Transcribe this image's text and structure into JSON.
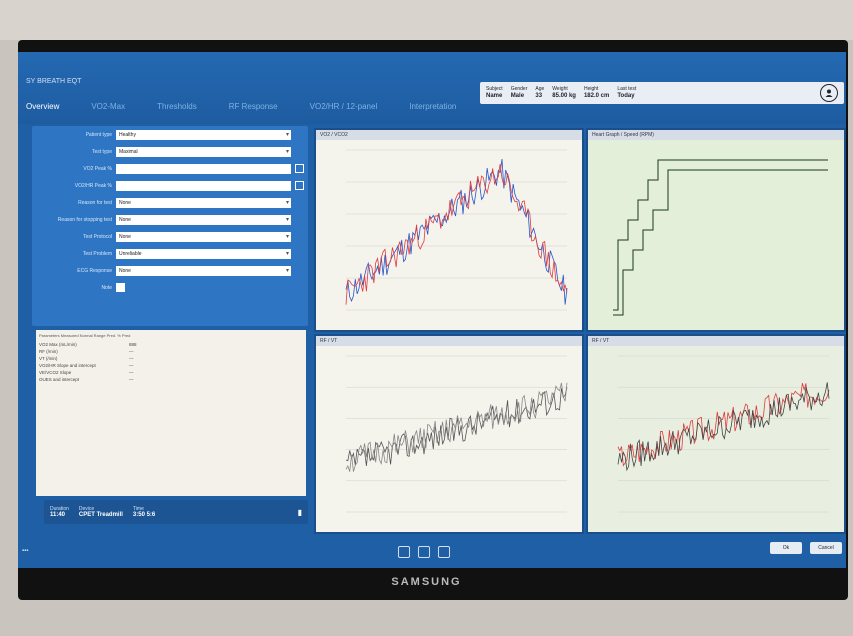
{
  "app": {
    "title": "SY BREATH EQT"
  },
  "tabs": [
    {
      "label": "Overview",
      "active": true
    },
    {
      "label": "VO2-Max",
      "active": false
    },
    {
      "label": "Thresholds",
      "active": false
    },
    {
      "label": "RF Response",
      "active": false
    },
    {
      "label": "VO2/HR / 12-panel",
      "active": false
    },
    {
      "label": "Interpretation",
      "active": false
    }
  ],
  "header": {
    "subject": {
      "label": "Subject",
      "value": "Name"
    },
    "gender": {
      "label": "Gender",
      "value": "Male"
    },
    "age": {
      "label": "Age",
      "value": "33"
    },
    "weight": {
      "label": "Weight",
      "value": "85.00 kg"
    },
    "height": {
      "label": "Height",
      "value": "182.0 cm"
    },
    "last_test": {
      "label": "Last test",
      "value": "Today"
    }
  },
  "form": {
    "rows": [
      {
        "label": "Patient type",
        "value": "Healthy",
        "type": "select"
      },
      {
        "label": "Test type",
        "value": "Maximal",
        "type": "select"
      },
      {
        "label": "VO2 Peak %",
        "value": "",
        "type": "input"
      },
      {
        "label": "VO2/HR Peak %",
        "value": "",
        "type": "input"
      },
      {
        "label": "Reason for test",
        "value": "None",
        "type": "select"
      },
      {
        "label": "Reason for stopping test",
        "value": "None",
        "type": "select"
      },
      {
        "label": "Test Protocol",
        "value": "None",
        "type": "select"
      },
      {
        "label": "Test Problem",
        "value": "Unreliable",
        "type": "select"
      },
      {
        "label": "ECG Response",
        "value": "None",
        "type": "select"
      },
      {
        "label": "Note",
        "value": "",
        "type": "checkbox"
      }
    ]
  },
  "summary": {
    "header": "Parameters   Measured  Normal Range  Pred.  % Pred",
    "rows": [
      {
        "name": "VO2 Max (mL/min)",
        "value": "888"
      },
      {
        "name": "RF (/min)",
        "value": "—"
      },
      {
        "name": "VT (/min)",
        "value": "—"
      },
      {
        "name": "VO2/HR Slope and intercept",
        "value": "—"
      },
      {
        "name": "VE/VCO2 Slope",
        "value": "—"
      },
      {
        "name": "OUES and intercept",
        "value": "—"
      }
    ]
  },
  "footer": {
    "duration": {
      "label": "Duration",
      "value": "11:40"
    },
    "device": {
      "label": "Device",
      "value": "CPET Treadmill"
    },
    "time": {
      "label": "Time",
      "value": "3:50  5:6"
    }
  },
  "charts": [
    {
      "title": "VO2 / VCO2",
      "background": "#f4f3ec"
    },
    {
      "title": "Heart Graph / Speed (RPM)",
      "background": "#e3efd9"
    },
    {
      "title": "RF / VT",
      "background": "#f4f3ec"
    },
    {
      "title": "RF / VT",
      "background": "#e8efe0"
    }
  ],
  "buttons": {
    "ok": "Ok",
    "cancel": "Cancel"
  },
  "brand": "SAMSUNG",
  "colors": {
    "accent": "#1f5fa6",
    "series_red": "#e03c3c",
    "series_blue": "#2a55c9"
  }
}
